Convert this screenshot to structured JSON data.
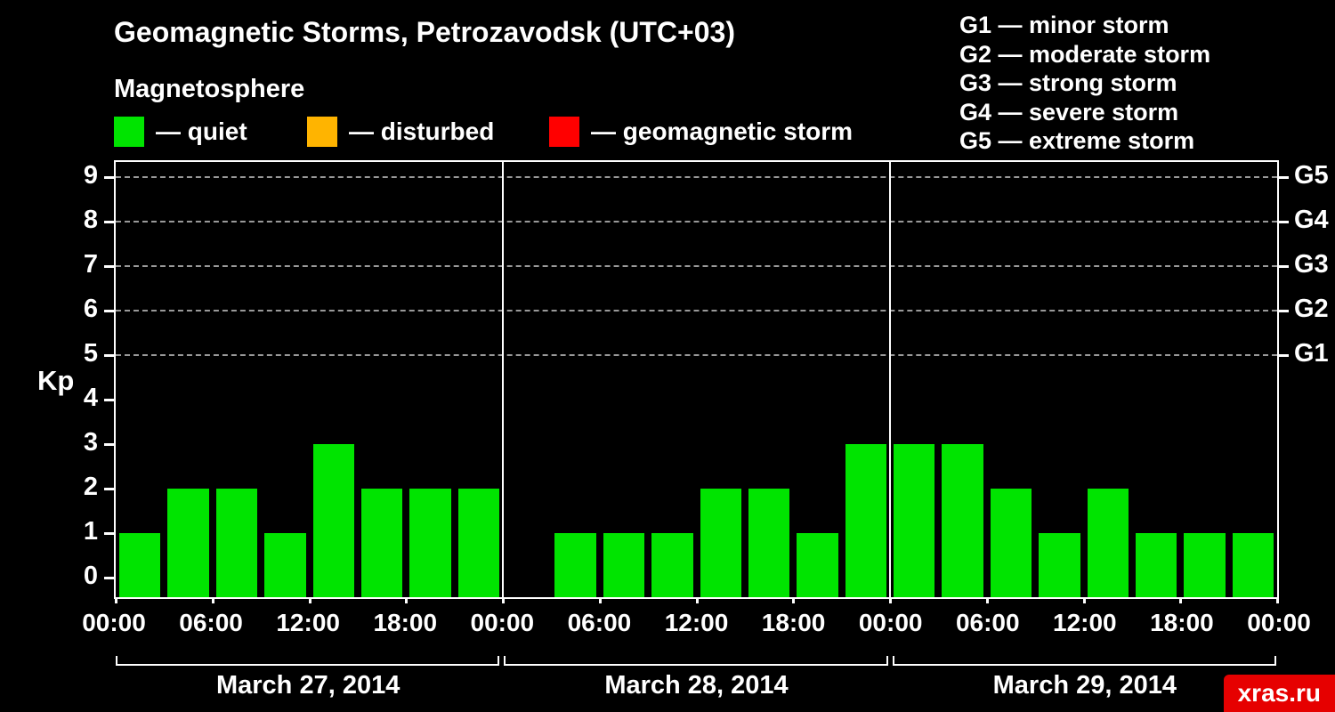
{
  "header": {
    "title": "Geomagnetic Storms, Petrozavodsk (UTC+03)",
    "subtitle": "Magnetosphere"
  },
  "legend": {
    "quiet": {
      "label": "— quiet",
      "color": "#00e400"
    },
    "disturbed": {
      "label": "— disturbed",
      "color": "#ffb400"
    },
    "storm": {
      "label": "— geomagnetic storm",
      "color": "#ff0000"
    }
  },
  "g_scale_legend": {
    "g1": "G1 — minor storm",
    "g2": "G2 — moderate storm",
    "g3": "G3 — strong storm",
    "g4": "G4 — severe storm",
    "g5": "G5 — extreme storm"
  },
  "watermark": {
    "text": "xras.ru",
    "bg_color": "#e60000"
  },
  "chart_data": {
    "type": "bar",
    "title": "Geomagnetic Storms, Petrozavodsk (UTC+03)",
    "ylabel": "Kp",
    "ylim": [
      0,
      9.5
    ],
    "yticks": [
      0,
      1,
      2,
      3,
      4,
      5,
      6,
      7,
      8,
      9
    ],
    "grid": "dashed horizontal lines at Kp 5-9 (G1-G5)",
    "legend_position": "top-left",
    "bar_color": "#00e400",
    "level_colors": {
      "quiet": "#00e400",
      "disturbed": "#ffb400",
      "storm": "#ff0000"
    },
    "g_levels": [
      {
        "kp": 5,
        "label": "G1"
      },
      {
        "kp": 6,
        "label": "G2"
      },
      {
        "kp": 7,
        "label": "G3"
      },
      {
        "kp": 8,
        "label": "G4"
      },
      {
        "kp": 9,
        "label": "G5"
      }
    ],
    "x_tick_labels": [
      "00:00",
      "06:00",
      "12:00",
      "18:00",
      "00:00",
      "06:00",
      "12:00",
      "18:00",
      "00:00",
      "06:00",
      "12:00",
      "18:00",
      "00:00"
    ],
    "days": [
      {
        "date": "March 27, 2014",
        "values": [
          1,
          2,
          2,
          1,
          3,
          2,
          2,
          2
        ]
      },
      {
        "date": "March 28, 2014",
        "values": [
          0,
          1,
          1,
          1,
          2,
          2,
          1,
          3
        ]
      },
      {
        "date": "March 29, 2014",
        "values": [
          3,
          3,
          2,
          1,
          2,
          1,
          1,
          1
        ]
      }
    ]
  }
}
